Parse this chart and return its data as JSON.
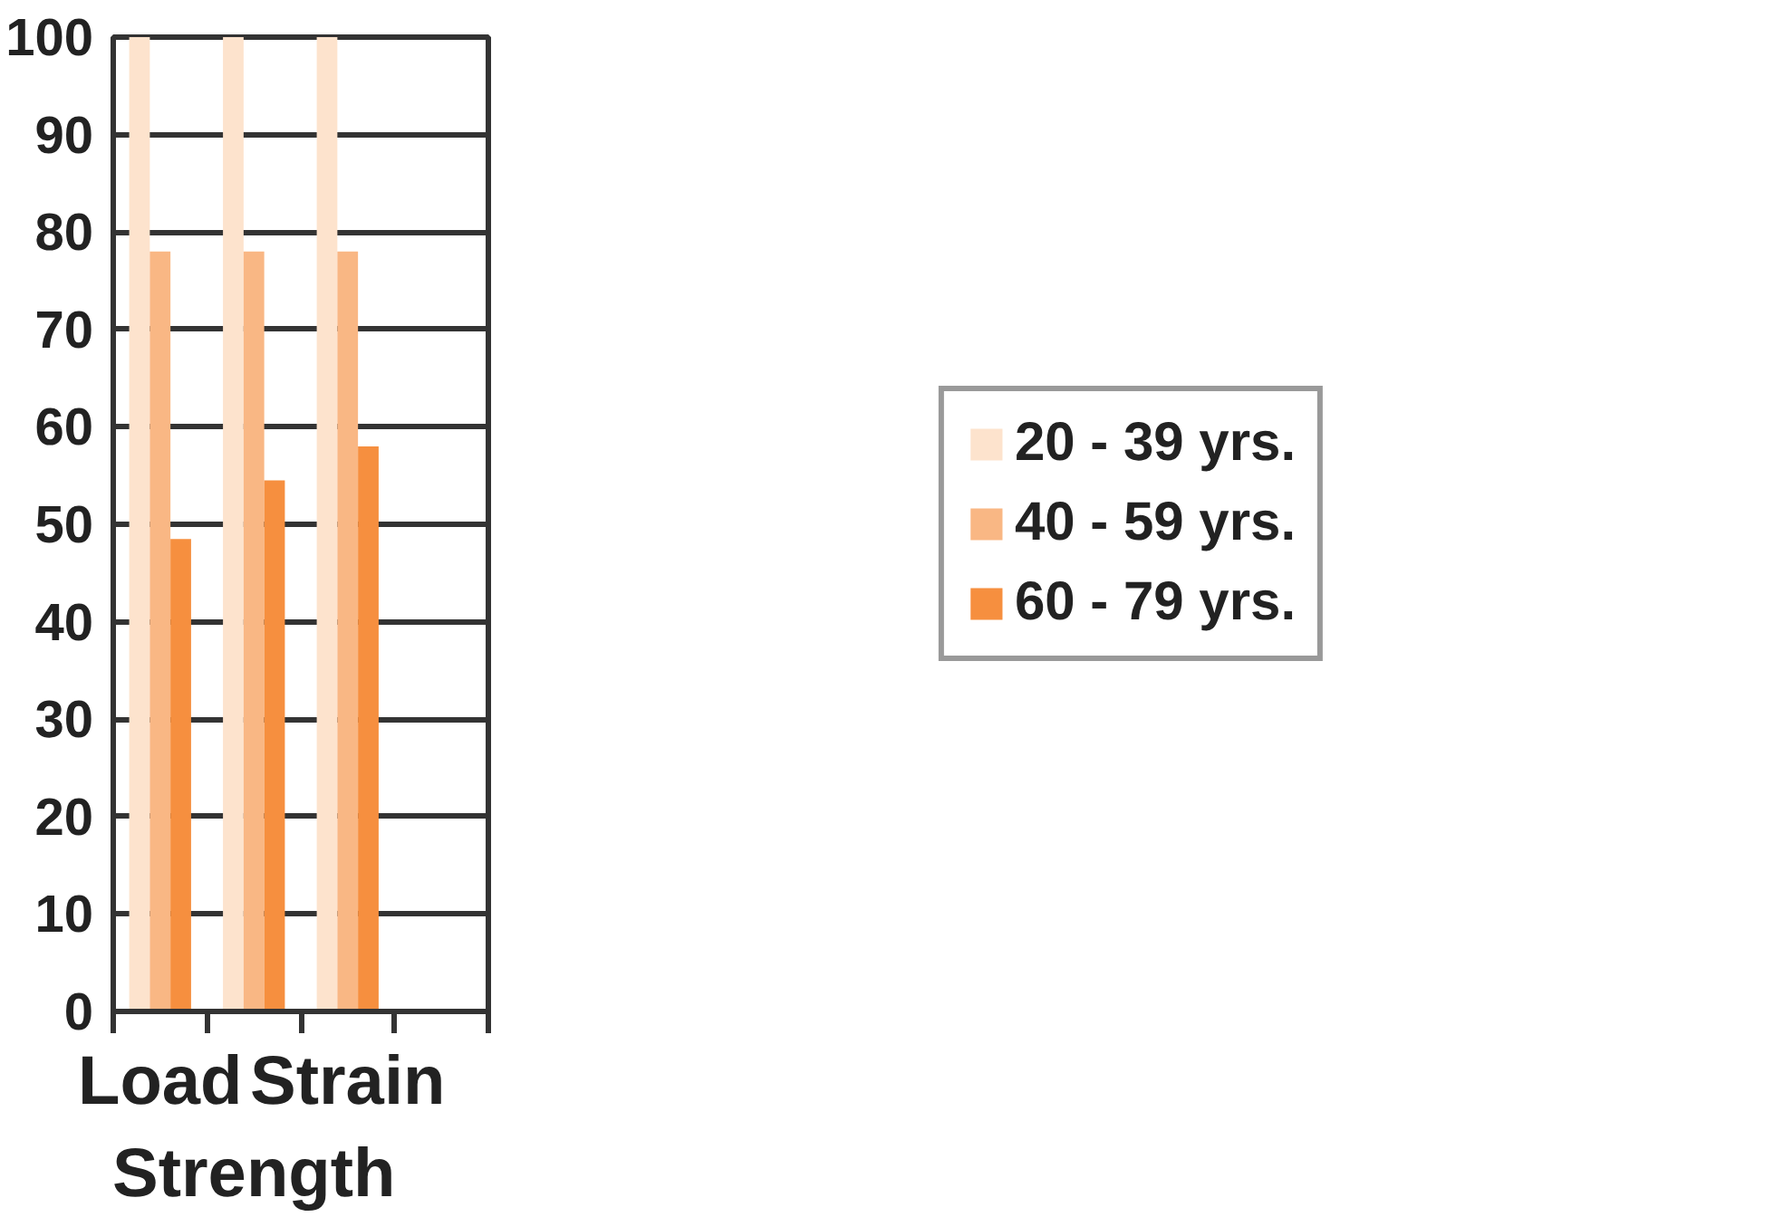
{
  "chart_data": {
    "type": "bar",
    "categories": [
      "Load",
      "Strength",
      "Strain",
      null
    ],
    "series": [
      {
        "name": "20 - 39 yrs.",
        "color": "#fde3cd",
        "values": [
          100,
          100,
          100,
          null
        ]
      },
      {
        "name": "40 - 59 yrs.",
        "color": "#f9b784",
        "values": [
          78,
          78,
          78,
          null
        ]
      },
      {
        "name": "60 - 79 yrs.",
        "color": "#f68f3f",
        "values": [
          48.5,
          54.5,
          58,
          null
        ]
      }
    ],
    "ylim": [
      0,
      100
    ],
    "yticks": [
      0,
      10,
      20,
      30,
      40,
      50,
      60,
      70,
      80,
      90,
      100
    ],
    "grid": "y",
    "legend": "right"
  }
}
